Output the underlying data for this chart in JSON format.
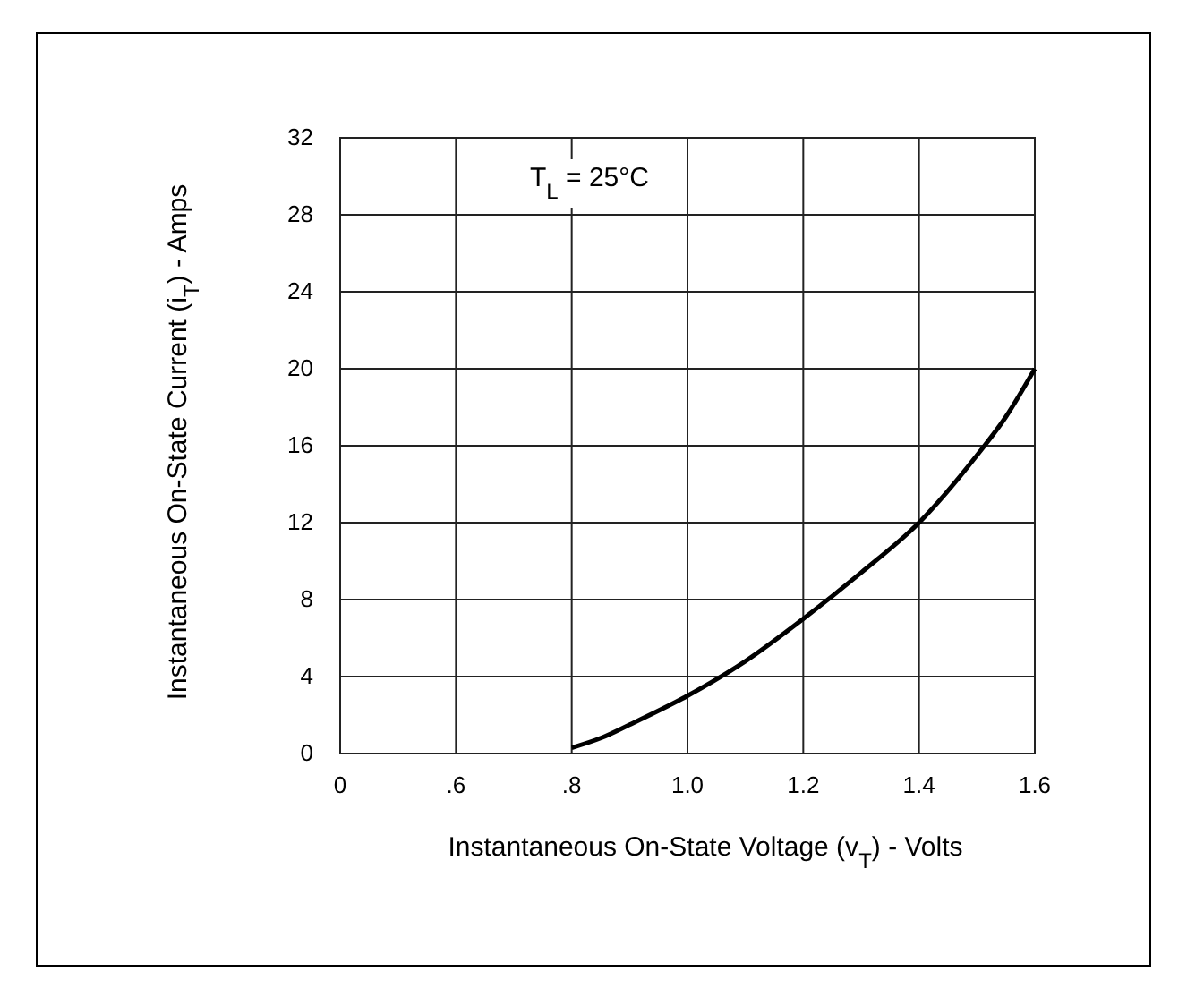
{
  "chart_data": {
    "type": "line",
    "xlabel": "Instantaneous On-State Voltage (v$_{T}$) - Volts",
    "ylabel": "Instantaneous On-State Current (i$_{T}$) - Amps",
    "annotations": [
      "T$_{L}$ = 25°C"
    ],
    "x": [
      0.8,
      0.85,
      0.9,
      1.0,
      1.1,
      1.2,
      1.3,
      1.4,
      1.5,
      1.55,
      1.6
    ],
    "series": [
      {
        "color": "#000000",
        "values": [
          0.3,
          0.8,
          1.5,
          3,
          4.8,
          7,
          9.4,
          12,
          15.5,
          17.5,
          20
        ]
      }
    ],
    "xlim": [
      0.4,
      1.6
    ],
    "xticks": [
      {
        "value": 0.4,
        "label": "0"
      },
      {
        "value": 0.6,
        "label": ".6"
      },
      {
        "value": 0.8,
        "label": ".8"
      },
      {
        "value": 1.0,
        "label": "1.0"
      },
      {
        "value": 1.2,
        "label": "1.2"
      },
      {
        "value": 1.4,
        "label": "1.4"
      },
      {
        "value": 1.6,
        "label": "1.6"
      }
    ],
    "ylim": [
      0,
      32
    ],
    "yticks": [
      0,
      4,
      8,
      12,
      16,
      20,
      24,
      28,
      32
    ],
    "grid": true,
    "marker": "none",
    "line_style": "solid"
  }
}
